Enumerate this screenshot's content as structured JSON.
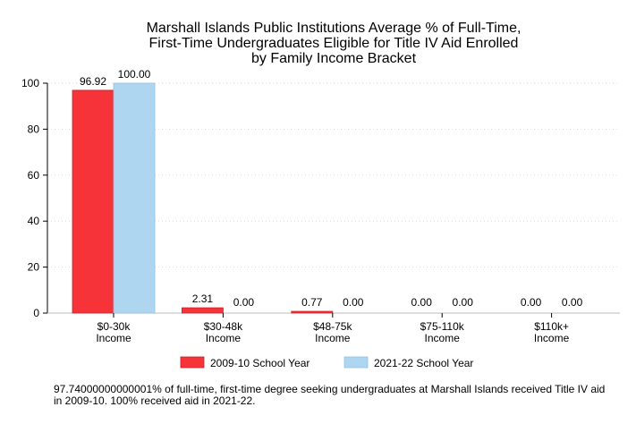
{
  "chart_data": {
    "type": "bar",
    "title": [
      "Marshall Islands Public Institutions Average % of Full-Time,",
      "First-Time Undergraduates Eligible for Title IV Aid Enrolled",
      "by Family Income Bracket"
    ],
    "categories": [
      [
        "$0-30k",
        "Income"
      ],
      [
        "$30-48k",
        "Income"
      ],
      [
        "$48-75k",
        "Income"
      ],
      [
        "$75-110k",
        "Income"
      ],
      [
        "$110k+",
        "Income"
      ]
    ],
    "series": [
      {
        "name": "2009-10 School Year",
        "color": "#f7333a",
        "values": [
          96.92,
          2.31,
          0.77,
          0.0,
          0.0
        ],
        "labels": [
          "96.92",
          "2.31",
          "0.77",
          "0.00",
          "0.00"
        ]
      },
      {
        "name": "2021-22 School Year",
        "color": "#aed6f1",
        "values": [
          100.0,
          0.0,
          0.0,
          0.0,
          0.0
        ],
        "labels": [
          "100.00",
          "0.00",
          "0.00",
          "0.00",
          "0.00"
        ]
      }
    ],
    "ylim": [
      0,
      100
    ],
    "yticks": [
      0,
      20,
      40,
      60,
      80,
      100
    ],
    "grid": true,
    "legend": "bottom"
  },
  "caption": "97.74000000000001% of full-time, first-time degree seeking undergraduates at Marshall Islands received Title IV aid\nin 2009-10. 100% received aid in 2021-22."
}
